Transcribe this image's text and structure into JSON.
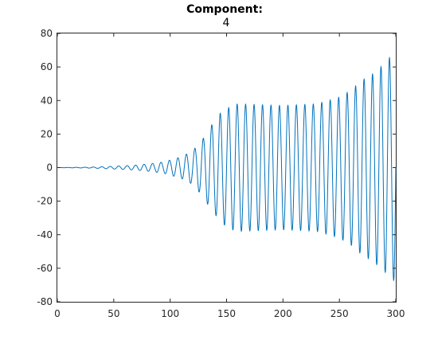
{
  "chart_data": {
    "type": "line",
    "title": "Component:",
    "subtitle": "4",
    "xlabel": "",
    "ylabel": "",
    "xlim": [
      0,
      300
    ],
    "ylim": [
      -80,
      80
    ],
    "xticks": [
      0,
      50,
      100,
      150,
      200,
      250,
      300
    ],
    "yticks": [
      -80,
      -60,
      -40,
      -20,
      0,
      20,
      40,
      60,
      80
    ],
    "grid": false,
    "series": [
      {
        "color": "#0072bd",
        "period": 7.5,
        "envelope": [
          [
            0,
            0
          ],
          [
            30,
            0.3
          ],
          [
            50,
            0.8
          ],
          [
            70,
            1.5
          ],
          [
            85,
            2.5
          ],
          [
            95,
            3.5
          ],
          [
            100,
            4.5
          ],
          [
            110,
            6.5
          ],
          [
            120,
            10
          ],
          [
            125,
            14
          ],
          [
            130,
            18
          ],
          [
            135,
            24
          ],
          [
            140,
            28
          ],
          [
            145,
            33
          ],
          [
            150,
            35
          ],
          [
            155,
            37
          ],
          [
            160,
            38
          ],
          [
            200,
            37
          ],
          [
            230,
            38
          ],
          [
            250,
            42
          ],
          [
            260,
            46
          ],
          [
            270,
            52
          ],
          [
            280,
            56
          ],
          [
            290,
            62
          ],
          [
            295,
            66
          ],
          [
            300,
            68
          ]
        ]
      }
    ]
  }
}
